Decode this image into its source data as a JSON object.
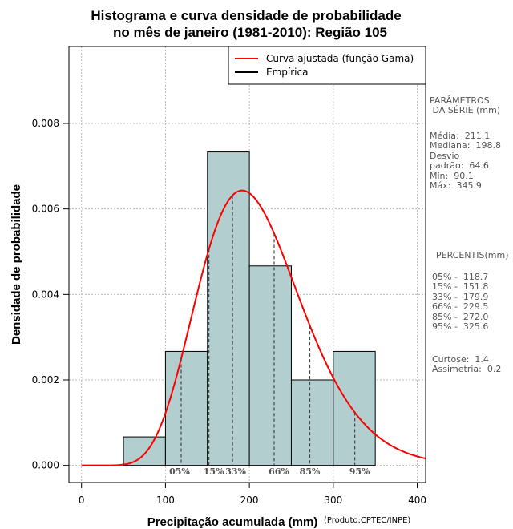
{
  "chart_data": {
    "type": "histogram",
    "title_line1": "Histograma e curva densidade de probabilidade",
    "title_line2": "no mês de janeiro (1981-2010): Região 105",
    "xlabel": "Precipitação acumulada (mm)",
    "ylabel": "Densidade de probabilidade",
    "credit": "(Produto:CPTEC/INPE)",
    "xlim": [
      -15,
      410
    ],
    "ylim": [
      -0.0004,
      0.0098
    ],
    "xticks": [
      0,
      100,
      200,
      300,
      400
    ],
    "xtick_labels": [
      "0",
      "100",
      "200",
      "300",
      "400"
    ],
    "yticks": [
      0,
      0.002,
      0.004,
      0.006,
      0.008
    ],
    "ytick_labels": [
      "0.000",
      "0.002",
      "0.004",
      "0.006",
      "0.008"
    ],
    "bins": [
      {
        "start": 50,
        "end": 100,
        "density": 0.000667
      },
      {
        "start": 100,
        "end": 150,
        "density": 0.002667
      },
      {
        "start": 150,
        "end": 200,
        "density": 0.007333
      },
      {
        "start": 200,
        "end": 250,
        "density": 0.004667
      },
      {
        "start": 250,
        "end": 300,
        "density": 0.002
      },
      {
        "start": 300,
        "end": 350,
        "density": 0.002667
      }
    ],
    "fitted_curve": {
      "name": "Curva ajustada (função Gama)",
      "color": "#ff0000",
      "mean": 211.1,
      "sd": 64.6
    },
    "empirical": {
      "name": "Empírica",
      "color": "#000000"
    },
    "percentile_markers": [
      {
        "label": "05%",
        "value": 118.7
      },
      {
        "label": "15%",
        "value": 151.8
      },
      {
        "label": "33%",
        "value": 179.9
      },
      {
        "label": "66%",
        "value": 229.5
      },
      {
        "label": "85%",
        "value": 272.0
      },
      {
        "label": "95%",
        "value": 325.6
      }
    ],
    "legend_position": "top-right",
    "grid": true,
    "bar_color": "#b3cece"
  },
  "side_panel": {
    "params_title": "PARÂMETROS\n DA SÉRIE (mm)",
    "params_body": "Média:  211.1\nMediana:  198.8\nDesvio\npadrão:  64.6\nMín:  90.1\nMáx:  345.9",
    "percentis_title": "PERCENTIS(mm)",
    "percentis_body": "05% -  118.7\n15% -  151.8\n33% -  179.9\n66% -  229.5\n85% -  272.0\n95% -  325.6",
    "stats_body": "Curtose:  1.4\nAssimetria:  0.2"
  }
}
